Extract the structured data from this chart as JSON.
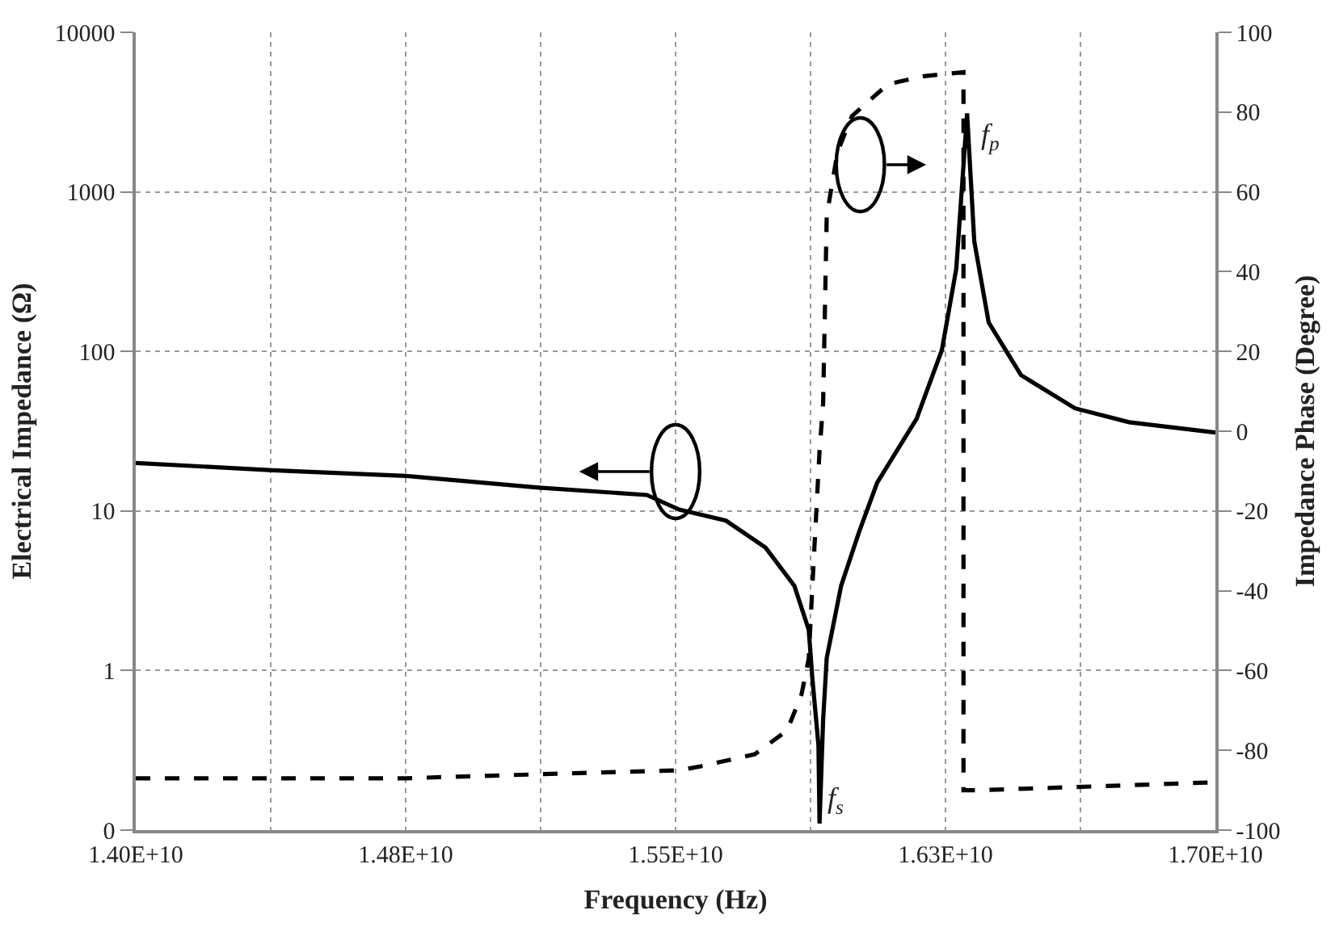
{
  "chart_data": {
    "type": "line",
    "xlabel": "Frequency (Hz)",
    "ylabel": "Electrical Impedance (Ω)",
    "y2label": "Impedance Phase (Degree)",
    "series": [
      {
        "color": "#000000",
        "line_style": "solid",
        "x": [
          14000000000.0,
          14380000000.0,
          14750000000.0,
          15120000000.0,
          15420000000.0,
          15510000000.0,
          15640000000.0,
          15750000000.0,
          15830000000.0,
          15870000000.0,
          15880000000.0,
          15897000000.0,
          15900000000.0,
          15910000000.0,
          15920000000.0,
          15960000000.0,
          16010000000.0,
          16060000000.0,
          16170000000.0,
          16240000000.0,
          16280000000.0,
          16310000000.0,
          16330000000.0,
          16370000000.0,
          16460000000.0,
          16610000000.0,
          16760000000.0,
          17000000000.0
        ],
        "values": [
          20,
          18,
          16.6,
          14,
          12.6,
          10.2,
          8.7,
          5.9,
          3.4,
          1.8,
          0.9,
          0.34,
          0.11,
          0.49,
          1.2,
          3.4,
          7.4,
          15,
          38,
          102,
          330,
          3100,
          490,
          152,
          71,
          44,
          36,
          31
        ]
      },
      {
        "color": "#000000",
        "line_style": "dashed",
        "axis": "y2",
        "x": [
          14000000000.0,
          14380000000.0,
          14750000000.0,
          15120000000.0,
          15510000000.0,
          15570000000.0,
          15720000000.0,
          15810000000.0,
          15850000000.0,
          15870000000.0,
          15880000000.0,
          15900000000.0,
          15910000000.0,
          15920000000.0,
          15950000000.0,
          15990000000.0,
          16090000000.0,
          16190000000.0,
          16300000000.0,
          16300000000.0,
          16340000000.0,
          16680000000.0,
          17000000000.0
        ],
        "values": [
          -87,
          -87,
          -87,
          -86,
          -85,
          -84,
          -81,
          -75,
          -66,
          -57,
          -39,
          -5,
          7,
          54,
          70,
          79,
          87,
          89,
          90,
          -90,
          -90,
          -89,
          -88
        ]
      }
    ],
    "xlim": [
      14000000000.0,
      17000000000.0
    ],
    "xticks": [
      {
        "value": 14000000000.0,
        "label": "1.40E+10"
      },
      {
        "value": 14375000000.0,
        "label": null
      },
      {
        "value": 14750000000.0,
        "label": "1.48E+10"
      },
      {
        "value": 15125000000.0,
        "label": null
      },
      {
        "value": 15500000000.0,
        "label": "1.55E+10"
      },
      {
        "value": 15875000000.0,
        "label": null
      },
      {
        "value": 16250000000.0,
        "label": "1.63E+10"
      },
      {
        "value": 16625000000.0,
        "label": null
      },
      {
        "value": 17000000000.0,
        "label": "1.70E+10"
      }
    ],
    "log": "y",
    "ylim": [
      0.1,
      10000
    ],
    "yticks": [
      {
        "value": 0.1,
        "label": "0"
      },
      1,
      10,
      100,
      1000,
      10000
    ],
    "y2lim": [
      -100,
      100
    ],
    "y2ticks": [
      -100,
      -80,
      -60,
      -40,
      -20,
      0,
      20,
      40,
      60,
      80,
      100
    ],
    "annotations": [
      {
        "text": "f$_{p}$",
        "x": 16310000000.0,
        "y": 3100
      },
      {
        "text": "f$_{s}$",
        "x": 15900000000.0,
        "y": 0.11
      }
    ],
    "grid": true
  }
}
